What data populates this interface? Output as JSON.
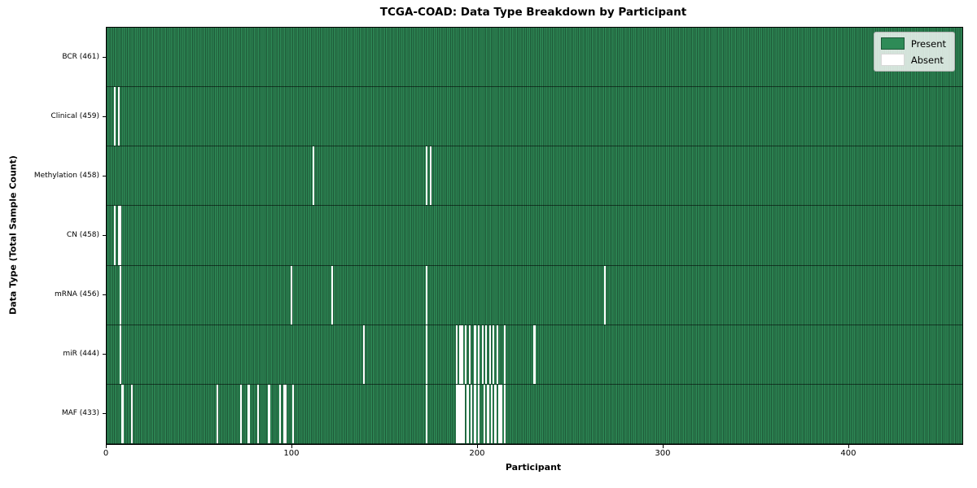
{
  "chart_data": {
    "type": "heatmap",
    "title": "TCGA-COAD: Data Type Breakdown by Participant",
    "xlabel": "Participant",
    "ylabel": "Data Type (Total Sample Count)",
    "n_participants": 461,
    "x_ticks": [
      0,
      100,
      200,
      300,
      400
    ],
    "grid": false,
    "legend_position": "upper right",
    "legend": [
      {
        "label": "Present",
        "color": "#2e8b57",
        "edge": "#1c5636"
      },
      {
        "label": "Absent",
        "color": "#ffffff",
        "edge": "#d8d8d8"
      }
    ],
    "colors": {
      "present": "#2e8b57",
      "present_cell_edge": "#1c5636",
      "absent": "#ffffff",
      "frame": "#000000"
    },
    "rows": [
      {
        "label": "BCR (461)",
        "data_type": "BCR",
        "total": 461,
        "absent_participants": []
      },
      {
        "label": "Clinical (459)",
        "data_type": "Clinical",
        "total": 459,
        "absent_participants": [
          4,
          6
        ]
      },
      {
        "label": "Methylation (458)",
        "data_type": "Methylation",
        "total": 458,
        "absent_participants": [
          111,
          172,
          174
        ]
      },
      {
        "label": "CN (458)",
        "data_type": "CN",
        "total": 458,
        "absent_participants": [
          4,
          6,
          7
        ]
      },
      {
        "label": "mRNA (456)",
        "data_type": "mRNA",
        "total": 456,
        "absent_participants": [
          7,
          99,
          121,
          172,
          268
        ]
      },
      {
        "label": "miR (444)",
        "data_type": "miR",
        "total": 444,
        "absent_participants": [
          7,
          138,
          172,
          188,
          190,
          191,
          193,
          195,
          198,
          200,
          202,
          204,
          206,
          208,
          210,
          214,
          230
        ]
      },
      {
        "label": "MAF (433)",
        "data_type": "MAF",
        "total": 433,
        "absent_participants": [
          8,
          13,
          59,
          72,
          76,
          81,
          87,
          93,
          95,
          96,
          100,
          172,
          188,
          189,
          190,
          191,
          192,
          194,
          196,
          198,
          200,
          203,
          205,
          207,
          209,
          211,
          212,
          214
        ]
      }
    ]
  }
}
